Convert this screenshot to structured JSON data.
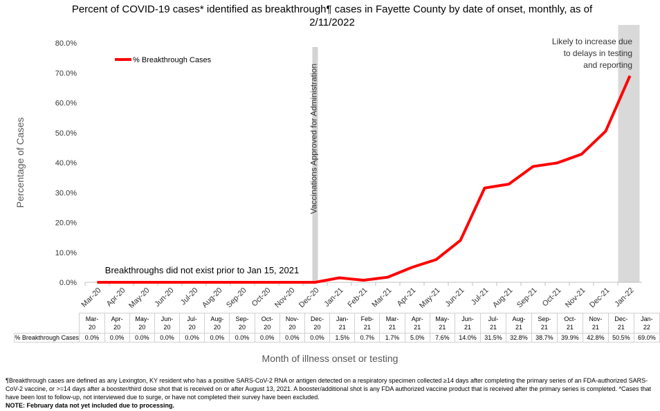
{
  "chart_data": {
    "type": "line",
    "title": "Percent of COVID-19 cases* identified as breakthrough¶ cases in Fayette County by date of onset, monthly, as of 2/11/2022",
    "x_label": "Month of illness onset or testing",
    "y_label": "Percentage of Cases",
    "categories": [
      "Mar-20",
      "Apr-20",
      "May-20",
      "Jun-20",
      "Jul-20",
      "Aug-20",
      "Sep-20",
      "Oct-20",
      "Nov-20",
      "Dec-20",
      "Jan-21",
      "Feb-21",
      "Mar-21",
      "Apr-21",
      "May-21",
      "Jun-21",
      "Jul-21",
      "Aug-21",
      "Sep-21",
      "Oct-21",
      "Nov-21",
      "Dec-21",
      "Jan-22"
    ],
    "series": [
      {
        "name": "% Breakthrough Cases",
        "color": "#ff0000",
        "values": [
          0,
          0,
          0,
          0,
          0,
          0,
          0,
          0,
          0,
          0,
          1.5,
          0.7,
          1.7,
          5.0,
          7.6,
          14.0,
          31.5,
          32.8,
          38.7,
          39.9,
          42.8,
          50.5,
          69.0
        ],
        "value_labels": [
          "0.0%",
          "0.0%",
          "0.0%",
          "0.0%",
          "0.0%",
          "0.0%",
          "0.0%",
          "0.0%",
          "0.0%",
          "0.0%",
          "1.5%",
          "0.7%",
          "1.7%",
          "5.0%",
          "7.6%",
          "14.0%",
          "31.5%",
          "32.8%",
          "38.7%",
          "39.9%",
          "42.8%",
          "50.5%",
          "69.0%"
        ]
      }
    ],
    "ylim": [
      0,
      80
    ],
    "yticks": [
      {
        "value": 0,
        "label": "0.0%"
      },
      {
        "value": 10,
        "label": "10.0%"
      },
      {
        "value": 20,
        "label": "20.0%"
      },
      {
        "value": 30,
        "label": "30.0%"
      },
      {
        "value": 40,
        "label": "40.0%"
      },
      {
        "value": 50,
        "label": "50.0%"
      },
      {
        "value": 60,
        "label": "60.0%"
      },
      {
        "value": 70,
        "label": "70.0%"
      },
      {
        "value": 80,
        "label": "80.0%"
      }
    ],
    "legend": "top-left",
    "annotations": [
      {
        "text": "Vaccinations Approved for Administration",
        "category": "Dec-20"
      },
      {
        "text": "Likely to increase due to delays in testing and reporting",
        "category": "Jan-22"
      },
      {
        "text": "Breakthroughs did not exist prior to Jan 15, 2021"
      }
    ]
  },
  "footnotes": [
    "¶Breakthrough cases are defined as any Lexington, KY resident who has a positive SARS-CoV-2 RNA or antigen detected on a respiratory specimen collected ≥14 days after completing the primary series of an FDA-authorized SARS-CoV-2 vaccine, or >=14 days after a booster/third dose shot that is received on or after August 13, 2021.  A booster/additional shot is any FDA authorized vaccine product that is received after the primary series is completed. *Cases that have been lost to follow-up, not interviewed due to surge, or have not completed their survey have been excluded.",
    "NOTE: February data not yet included due to processing."
  ]
}
